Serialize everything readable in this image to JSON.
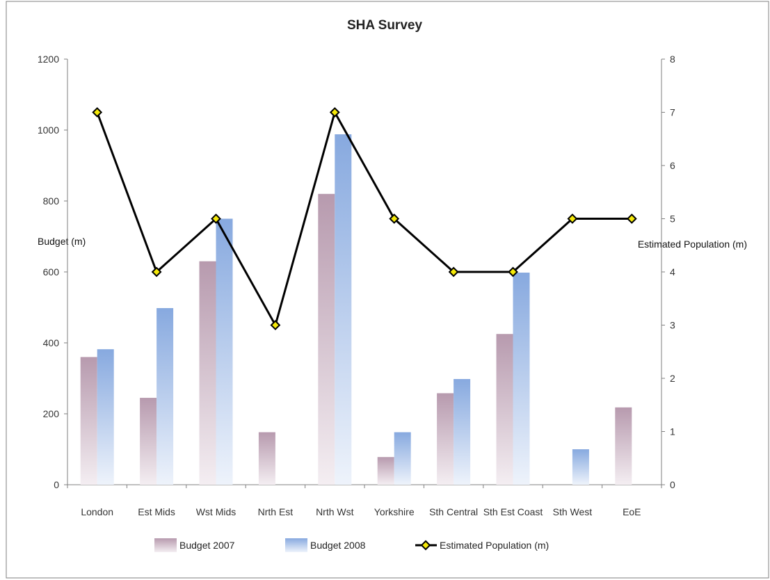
{
  "chart_data": {
    "type": "bar",
    "title": "SHA Survey",
    "categories": [
      "London",
      "Est Mids",
      "Wst Mids",
      "Nrth Est",
      "Nrth Wst",
      "Yorkshire",
      "Sth Central",
      "Sth Est Coast",
      "Sth West",
      "EoE"
    ],
    "series": [
      {
        "name": "Budget 2007",
        "type": "bar",
        "axis": "left",
        "values": [
          360,
          245,
          630,
          148,
          820,
          78,
          258,
          425,
          0,
          218
        ]
      },
      {
        "name": "Budget 2008",
        "type": "bar",
        "axis": "left",
        "values": [
          382,
          498,
          750,
          0,
          988,
          148,
          298,
          598,
          100,
          0
        ]
      },
      {
        "name": "Estimated Population (m)",
        "type": "line",
        "axis": "right",
        "values": [
          7,
          4,
          5,
          3,
          7,
          5,
          4,
          4,
          5,
          5
        ]
      }
    ],
    "ylabel": "Budget (m)",
    "y2label": "Estimated Population (m)",
    "ylim": [
      0,
      1200
    ],
    "y2lim": [
      0,
      8
    ],
    "yticks": [
      0,
      200,
      400,
      600,
      800,
      1000,
      1200
    ],
    "y2ticks": [
      0,
      1,
      2,
      3,
      4,
      5,
      6,
      7,
      8
    ],
    "grid": false,
    "legend_position": "bottom",
    "colors": {
      "budget_2007_top": "#b79aae",
      "budget_2007_bottom": "#f4eef2",
      "budget_2008_top": "#87a9df",
      "budget_2008_bottom": "#eef3fb",
      "line": "#000000",
      "marker_fill": "#f5e90a"
    }
  }
}
